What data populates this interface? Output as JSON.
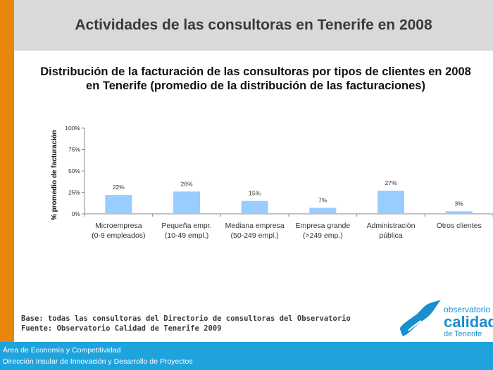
{
  "header": {
    "title": "Actividades de las consultoras en Tenerife en 2008"
  },
  "chart_title": {
    "line1": "Distribución de la facturación de las consultoras por tipos de clientes en 2008",
    "line2": "en Tenerife   (promedio de la distribución de las facturaciones)"
  },
  "chart_data": {
    "type": "bar",
    "ylabel": "% promedio de facturación",
    "ylim": [
      0,
      100
    ],
    "yticks": [
      "0%",
      "25%",
      "50%",
      "75%",
      "100%"
    ],
    "ytick_values": [
      0,
      25,
      50,
      75,
      100
    ],
    "categories": [
      [
        "Microempresa",
        "(0-9 empleados)"
      ],
      [
        "Pequeña empr.",
        "(10-49 empl.)"
      ],
      [
        "Mediana empresa",
        "(50-249 empl.)"
      ],
      [
        "Empresa grande",
        "(>249 emp.)"
      ],
      [
        "Administración",
        "pública"
      ],
      [
        "Otros clientes"
      ]
    ],
    "values": [
      22,
      26,
      15,
      7,
      27,
      3
    ],
    "data_labels": [
      "22%",
      "26%",
      "15%",
      "7%",
      "27%",
      "3%"
    ],
    "bar_color": "#99ccff",
    "grid": false
  },
  "base": {
    "line1": "Base: todas las consultoras del Directorio de consultoras del Observatorio",
    "line2": "Fuente: Observatorio Calidad de Tenerife 2009"
  },
  "footer": {
    "line1": "Área de Economía y Competitividad",
    "line2": "Dirección Insular de Innovación y Desarrollo de Proyectos",
    "color": "#1ea3dd"
  },
  "logo": {
    "line1": "observatorio",
    "line2": "calidad",
    "line3": "de Tenerife",
    "color": "#1a8fcf"
  },
  "accent_color": "#e8860c"
}
